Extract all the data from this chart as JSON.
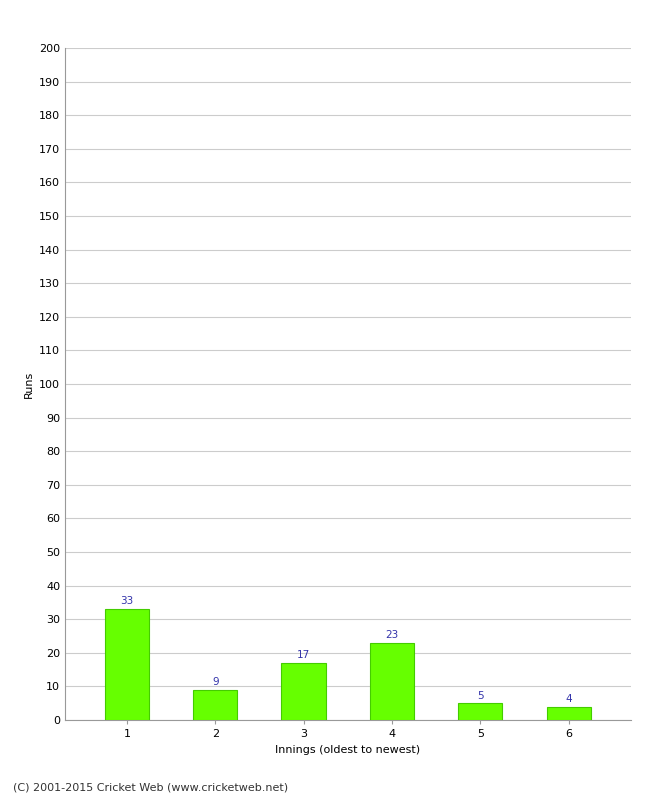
{
  "categories": [
    "1",
    "2",
    "3",
    "4",
    "5",
    "6"
  ],
  "values": [
    33,
    9,
    17,
    23,
    5,
    4
  ],
  "bar_color": "#66ff00",
  "bar_edge_color": "#44cc00",
  "xlabel": "Innings (oldest to newest)",
  "ylabel": "Runs",
  "ylim": [
    0,
    200
  ],
  "yticks": [
    0,
    10,
    20,
    30,
    40,
    50,
    60,
    70,
    80,
    90,
    100,
    110,
    120,
    130,
    140,
    150,
    160,
    170,
    180,
    190,
    200
  ],
  "label_color": "#3333aa",
  "label_fontsize": 7.5,
  "footer": "(C) 2001-2015 Cricket Web (www.cricketweb.net)",
  "footer_fontsize": 8,
  "background_color": "#ffffff",
  "grid_color": "#cccccc",
  "tick_fontsize": 8,
  "axis_label_fontsize": 8
}
